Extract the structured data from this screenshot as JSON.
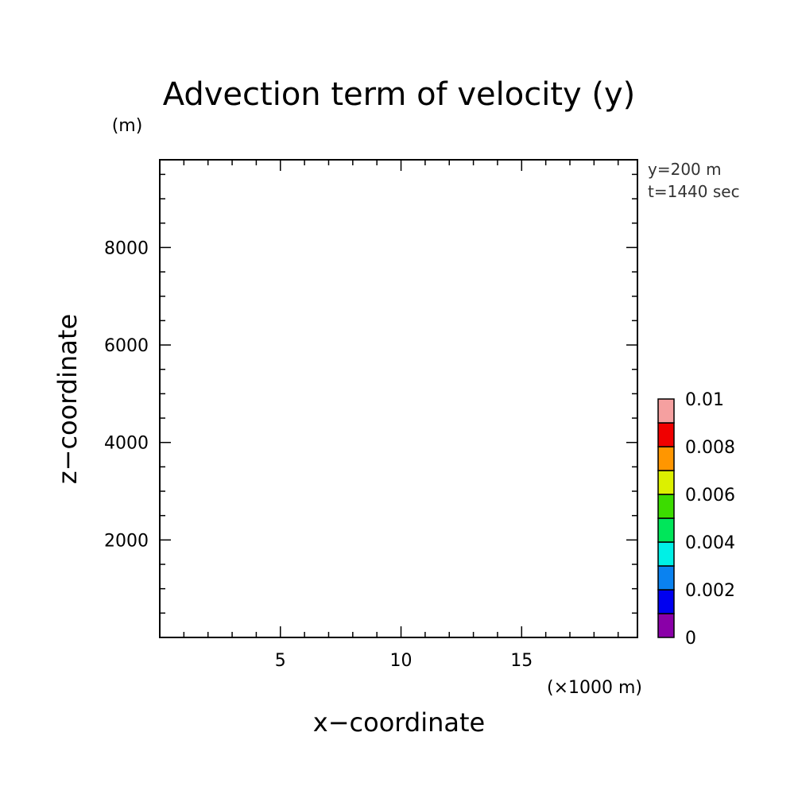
{
  "chart_data": {
    "type": "heatmap",
    "title": "Advection term of velocity (y)",
    "xlabel": "x−coordinate",
    "ylabel": "z−coordinate",
    "x_unit": "(×1000 m)",
    "y_unit": "(m)",
    "xlim": [
      0,
      19.8
    ],
    "ylim": [
      0,
      9800
    ],
    "x_major_ticks": [
      5,
      10,
      15
    ],
    "x_tick_labels": [
      "5",
      "10",
      "15"
    ],
    "x_minor_step": 1,
    "y_major_ticks": [
      2000,
      4000,
      6000,
      8000
    ],
    "y_tick_labels": [
      "2000",
      "4000",
      "6000",
      "8000"
    ],
    "y_minor_step": 500,
    "annotations": [
      "y=200 m",
      "t=1440 sec"
    ],
    "grid": false,
    "values": [],
    "colorbar": {
      "levels": [
        0,
        0.001,
        0.002,
        0.003,
        0.004,
        0.005,
        0.006,
        0.007,
        0.008,
        0.009,
        0.01
      ],
      "colors": [
        "#8a00a8",
        "#0000f0",
        "#0a82f0",
        "#00f0e6",
        "#00e65a",
        "#3cdc00",
        "#dcf000",
        "#ff9600",
        "#f00000",
        "#f5a0a0"
      ],
      "tick_values": [
        0,
        0.002,
        0.004,
        0.006,
        0.008,
        0.01
      ],
      "tick_labels": [
        "0",
        "0.002",
        "0.004",
        "0.006",
        "0.008",
        "0.01"
      ]
    }
  }
}
